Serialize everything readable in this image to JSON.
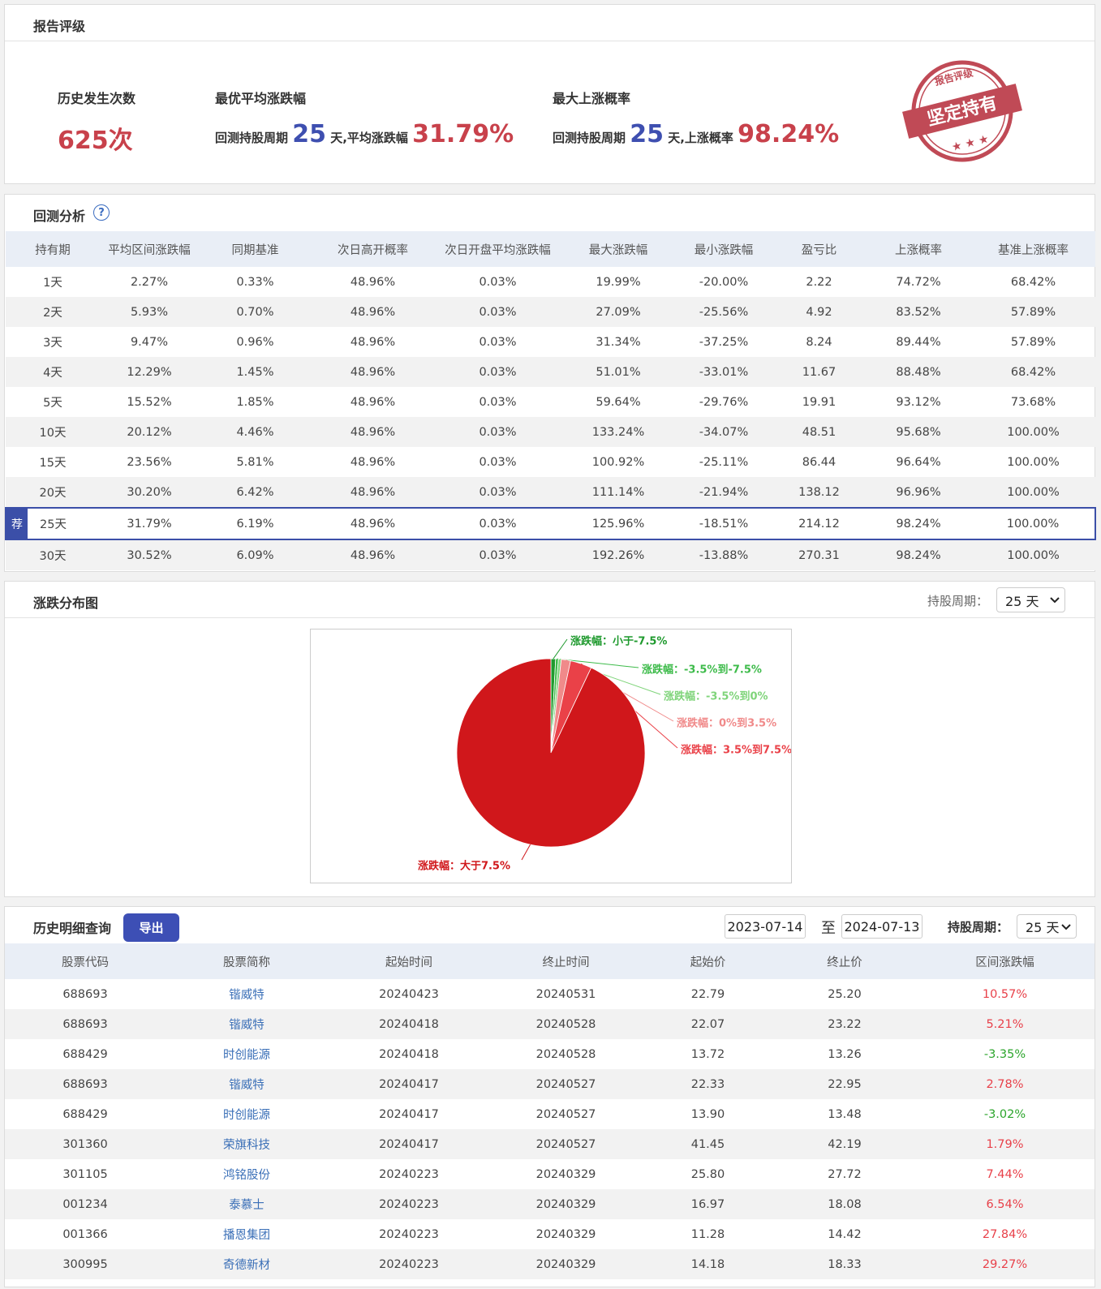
{
  "report_rating": {
    "title": "报告评级",
    "occurrences": {
      "label": "历史发生次数",
      "value": "625次"
    },
    "best_avg": {
      "label": "最优平均涨跌幅",
      "prefix": "回测持股周期",
      "period": "25",
      "middle": "天,平均涨跌幅",
      "value": "31.79%"
    },
    "max_up": {
      "label": "最大上涨概率",
      "prefix": "回测持股周期",
      "period": "25",
      "middle": "天,上涨概率",
      "value": "98.24%"
    },
    "stamp": {
      "top": "报告评级",
      "main": "坚定持有"
    }
  },
  "backtest": {
    "title": "回测分析",
    "help": "?",
    "columns": [
      "持有期",
      "平均区间涨跌幅",
      "同期基准",
      "次日高开概率",
      "次日开盘平均涨跌幅",
      "最大涨跌幅",
      "最小涨跌幅",
      "盈亏比",
      "上涨概率",
      "基准上涨概率"
    ],
    "rows": [
      [
        "1天",
        "2.27%",
        "0.33%",
        "48.96%",
        "0.03%",
        "19.99%",
        "-20.00%",
        "2.22",
        "74.72%",
        "68.42%"
      ],
      [
        "2天",
        "5.93%",
        "0.70%",
        "48.96%",
        "0.03%",
        "27.09%",
        "-25.56%",
        "4.92",
        "83.52%",
        "57.89%"
      ],
      [
        "3天",
        "9.47%",
        "0.96%",
        "48.96%",
        "0.03%",
        "31.34%",
        "-37.25%",
        "8.24",
        "89.44%",
        "57.89%"
      ],
      [
        "4天",
        "12.29%",
        "1.45%",
        "48.96%",
        "0.03%",
        "51.01%",
        "-33.01%",
        "11.67",
        "88.48%",
        "68.42%"
      ],
      [
        "5天",
        "15.52%",
        "1.85%",
        "48.96%",
        "0.03%",
        "59.64%",
        "-29.76%",
        "19.91",
        "93.12%",
        "73.68%"
      ],
      [
        "10天",
        "20.12%",
        "4.46%",
        "48.96%",
        "0.03%",
        "133.24%",
        "-34.07%",
        "48.51",
        "95.68%",
        "100.00%"
      ],
      [
        "15天",
        "23.56%",
        "5.81%",
        "48.96%",
        "0.03%",
        "100.92%",
        "-25.11%",
        "86.44",
        "96.64%",
        "100.00%"
      ],
      [
        "20天",
        "30.20%",
        "6.42%",
        "48.96%",
        "0.03%",
        "111.14%",
        "-21.94%",
        "138.12",
        "96.96%",
        "100.00%"
      ],
      [
        "25天",
        "31.79%",
        "6.19%",
        "48.96%",
        "0.03%",
        "125.96%",
        "-18.51%",
        "214.12",
        "98.24%",
        "100.00%"
      ],
      [
        "30天",
        "30.52%",
        "6.09%",
        "48.96%",
        "0.03%",
        "192.26%",
        "-13.88%",
        "270.31",
        "98.24%",
        "100.00%"
      ]
    ],
    "recommended_row": 8,
    "recommended_badge": "荐"
  },
  "distribution": {
    "title": "涨跌分布图",
    "period_label": "持股周期：",
    "period": "25 天"
  },
  "chart_data": {
    "type": "pie",
    "labels": [
      "涨跌幅：小于-7.5%",
      "涨跌幅：-3.5%到-7.5%",
      "涨跌幅：-3.5%到0%",
      "涨跌幅：0%到3.5%",
      "涨跌幅：3.5%到7.5%",
      "涨跌幅：大于7.5%"
    ],
    "values": [
      0.8,
      0.48,
      0.48,
      1.6,
      3.68,
      92.96
    ],
    "colors": [
      "#1f9a2e",
      "#3dbb4a",
      "#7fd47a",
      "#f08a8a",
      "#ea4148",
      "#d0171b"
    ]
  },
  "history": {
    "title": "历史明细查询",
    "export": "导出",
    "start_date": "2023-07-14",
    "to": "至",
    "end_date": "2024-07-13",
    "period_label": "持股周期：",
    "period": "25 天",
    "columns": [
      "股票代码",
      "股票简称",
      "起始时间",
      "终止时间",
      "起始价",
      "终止价",
      "区间涨跌幅"
    ],
    "rows": [
      [
        "688693",
        "锴威特",
        "20240423",
        "20240531",
        "22.79",
        "25.20",
        "10.57%"
      ],
      [
        "688693",
        "锴威特",
        "20240418",
        "20240528",
        "22.07",
        "23.22",
        "5.21%"
      ],
      [
        "688429",
        "时创能源",
        "20240418",
        "20240528",
        "13.72",
        "13.26",
        "-3.35%"
      ],
      [
        "688693",
        "锴威特",
        "20240417",
        "20240527",
        "22.33",
        "22.95",
        "2.78%"
      ],
      [
        "688429",
        "时创能源",
        "20240417",
        "20240527",
        "13.90",
        "13.48",
        "-3.02%"
      ],
      [
        "301360",
        "荣旗科技",
        "20240417",
        "20240527",
        "41.45",
        "42.19",
        "1.79%"
      ],
      [
        "301105",
        "鸿铭股份",
        "20240223",
        "20240329",
        "25.80",
        "27.72",
        "7.44%"
      ],
      [
        "001234",
        "泰慕士",
        "20240223",
        "20240329",
        "16.97",
        "18.08",
        "6.54%"
      ],
      [
        "001366",
        "播恩集团",
        "20240223",
        "20240329",
        "11.28",
        "14.42",
        "27.84%"
      ],
      [
        "300995",
        "奇德新材",
        "20240223",
        "20240329",
        "14.18",
        "18.33",
        "29.27%"
      ]
    ]
  }
}
